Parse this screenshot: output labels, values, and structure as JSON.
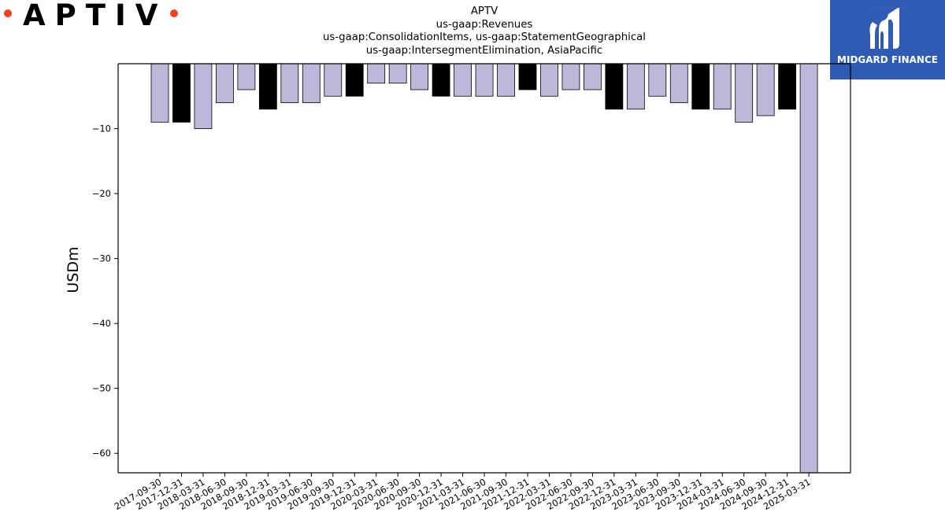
{
  "logo": {
    "wordmark": "APTIV",
    "dot_color": "#f2411d"
  },
  "brand": {
    "name": "MIDGARD FINANCE",
    "bg_color": "#2f5bb5"
  },
  "chart_data": {
    "type": "bar",
    "title": [
      "APTV",
      "us-gaap:Revenues",
      "us-gaap:ConsolidationItems, us-gaap:StatementGeographical",
      "us-gaap:IntersegmentElimination, AsiaPacific"
    ],
    "xlabel": "",
    "ylabel": "USDm",
    "ylim": [
      -63,
      0
    ],
    "yticks": [
      -10,
      -20,
      -30,
      -40,
      -50,
      -60
    ],
    "categories": [
      "2017-09-30",
      "2017-12-31",
      "2018-03-31",
      "2018-06-30",
      "2018-09-30",
      "2018-12-31",
      "2019-03-31",
      "2019-06-30",
      "2019-09-30",
      "2019-12-31",
      "2020-03-31",
      "2020-06-30",
      "2020-09-30",
      "2020-12-31",
      "2021-03-31",
      "2021-06-30",
      "2021-09-30",
      "2021-12-31",
      "2022-03-31",
      "2022-06-30",
      "2022-09-30",
      "2022-12-31",
      "2023-03-31",
      "2023-06-30",
      "2023-09-30",
      "2023-12-31",
      "2024-03-31",
      "2024-06-30",
      "2024-09-30",
      "2024-12-31",
      "2025-03-31"
    ],
    "values": [
      -9,
      -9,
      -10,
      -6,
      -4,
      -7,
      -6,
      -6,
      -5,
      -5,
      -3,
      -3,
      -4,
      -5,
      -5,
      -5,
      -5,
      -4,
      -5,
      -4,
      -4,
      -7,
      -7,
      -5,
      -6,
      -7,
      -7,
      -9,
      -8,
      -7,
      -63
    ],
    "highlight": [
      false,
      true,
      false,
      false,
      false,
      true,
      false,
      false,
      false,
      true,
      false,
      false,
      false,
      true,
      false,
      false,
      false,
      true,
      false,
      false,
      false,
      true,
      false,
      false,
      false,
      true,
      false,
      false,
      false,
      true,
      false
    ],
    "colors": {
      "bar": "#bcb8da",
      "highlight": "#000000",
      "edge": "#000000"
    },
    "grid": false,
    "legend": "none"
  }
}
